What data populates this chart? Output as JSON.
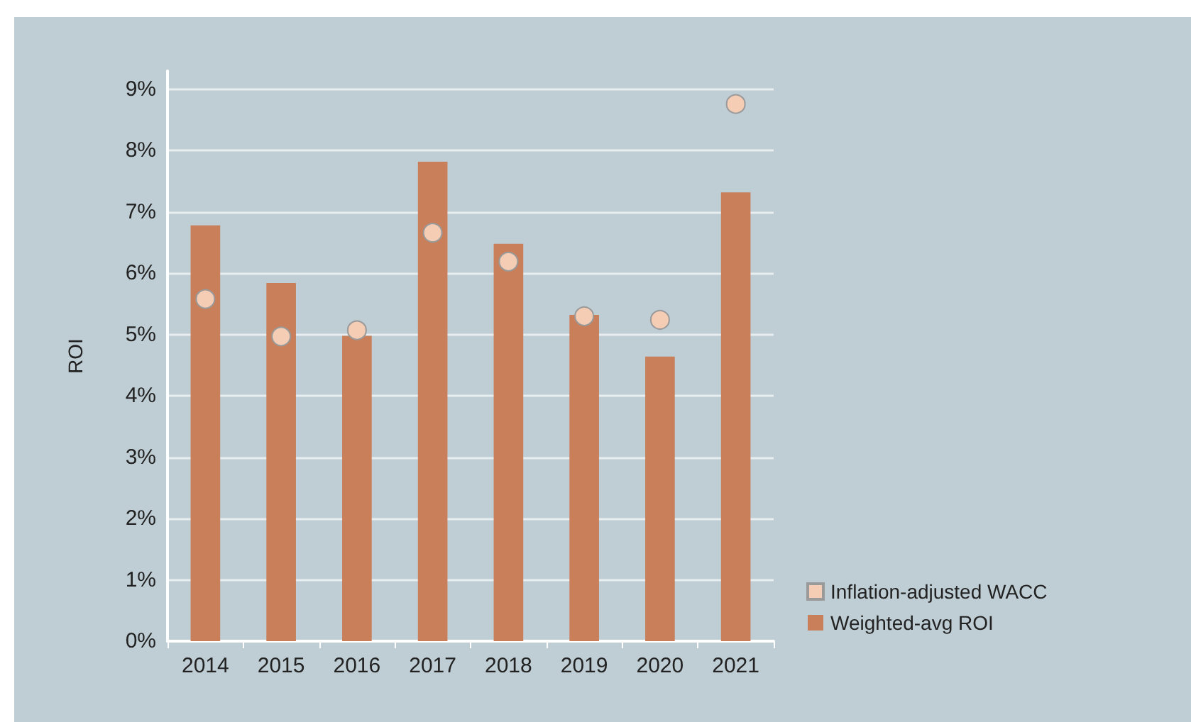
{
  "chart_data": {
    "type": "bar",
    "ylabel": "ROI",
    "categories": [
      "2014",
      "2015",
      "2016",
      "2017",
      "2018",
      "2019",
      "2020",
      "2021"
    ],
    "series": [
      {
        "name": "Inflation-adjusted WACC",
        "type": "scatter",
        "color": "#f4cdb4",
        "values": [
          5.58,
          4.97,
          5.07,
          6.66,
          6.19,
          5.3,
          5.24,
          8.76
        ]
      },
      {
        "name": "Weighted-avg ROI",
        "color": "#c87f5a",
        "values": [
          6.78,
          5.84,
          4.98,
          7.82,
          6.48,
          5.32,
          4.64,
          7.32
        ]
      }
    ],
    "ylim": [
      0,
      9.3
    ],
    "yticks": [
      {
        "value": 0,
        "label": "0%"
      },
      {
        "value": 1,
        "label": "1%"
      },
      {
        "value": 2,
        "label": "2%"
      },
      {
        "value": 3,
        "label": "3%"
      },
      {
        "value": 4,
        "label": "4%"
      },
      {
        "value": 5,
        "label": "5%"
      },
      {
        "value": 6,
        "label": "6%"
      },
      {
        "value": 7,
        "label": "7%"
      },
      {
        "value": 8,
        "label": "8%"
      },
      {
        "value": 9,
        "label": "9%"
      }
    ],
    "grid": "y",
    "legend": "bottom right",
    "marker": "circle"
  }
}
